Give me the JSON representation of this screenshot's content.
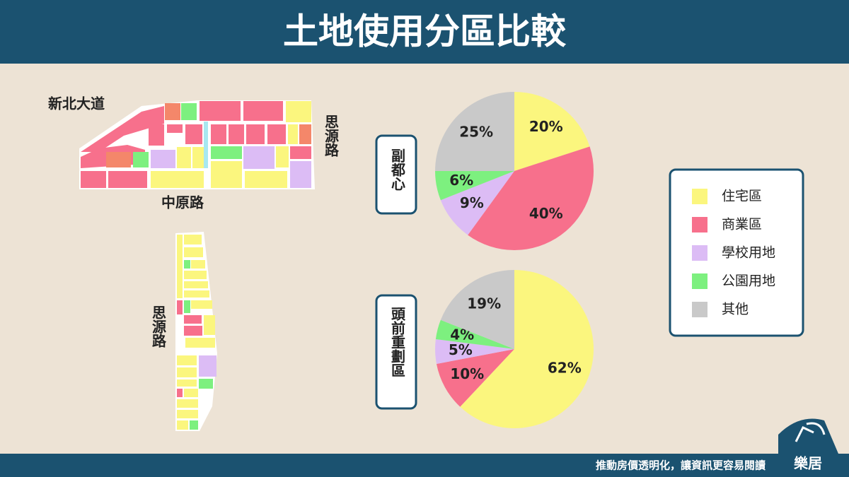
{
  "title": "土地使用分區比較",
  "map_labels": {
    "top_road_1": "新北大道",
    "top_road_2": "思源路",
    "top_road_3": "中原路",
    "bottom_road": "思源路"
  },
  "legend": [
    {
      "name": "住宅區",
      "color": "#fbf67e"
    },
    {
      "name": "商業區",
      "color": "#f7708c"
    },
    {
      "name": "學校用地",
      "color": "#dcbcf5"
    },
    {
      "name": "公園用地",
      "color": "#7df07f"
    },
    {
      "name": "其他",
      "color": "#c9c9c9"
    }
  ],
  "chart_data": [
    {
      "type": "pie",
      "title": "副都心",
      "values": [
        20,
        40,
        9,
        6,
        25
      ],
      "value_labels": [
        "20%",
        "40%",
        "9%",
        "6%",
        "25%"
      ]
    },
    {
      "type": "pie",
      "title": "頭前重劃區",
      "values": [
        62,
        10,
        5,
        4,
        19
      ],
      "value_labels": [
        "62%",
        "10%",
        "5%",
        "4%",
        "19%"
      ]
    }
  ],
  "footer": "推動房價透明化，讓資訊更容易閱讀",
  "logo": "樂居"
}
